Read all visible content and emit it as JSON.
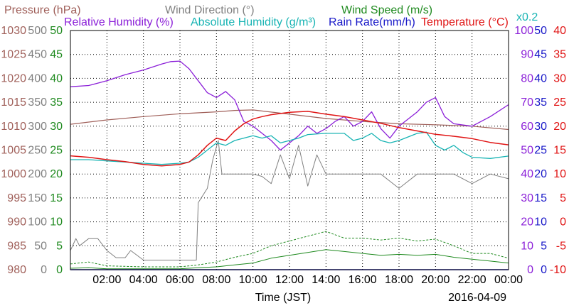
{
  "chart_data": {
    "type": "line",
    "date": "2016-04-09",
    "xlabel": "Time (JST)",
    "x_ticks": [
      "02:00",
      "04:00",
      "06:00",
      "08:00",
      "10:00",
      "12:00",
      "14:00",
      "16:00",
      "18:00",
      "20:00",
      "22:00",
      "00:00"
    ],
    "x_range_hours": [
      0,
      24
    ],
    "grid": true,
    "legend_placement": "top",
    "colors": {
      "pressure": "#a0605a",
      "wind_direction": "#808080",
      "wind_speed": "#1f8a1f",
      "relative_humidity": "#8b1fd8",
      "absolute_humidity": "#18b4b4",
      "rain_rate": "#1818c8",
      "temperature": "#e01414"
    },
    "axes": [
      {
        "key": "pressure",
        "range": [
          980,
          1030
        ],
        "ticks": [
          "980",
          "985",
          "990",
          "995",
          "1000",
          "1005",
          "1010",
          "1015",
          "1020",
          "1025",
          "1030"
        ]
      },
      {
        "key": "wind_direction",
        "range": [
          0,
          500
        ],
        "ticks": [
          "0",
          "50",
          "100",
          "150",
          "200",
          "250",
          "300",
          "350",
          "400",
          "450",
          "500"
        ]
      },
      {
        "key": "wind_speed",
        "range": [
          0,
          50
        ],
        "ticks": [
          "0",
          "5",
          "10",
          "15",
          "20",
          "25",
          "30",
          "35",
          "40",
          "45",
          "50"
        ]
      },
      {
        "key": "relative_humidity",
        "range": [
          0,
          100
        ],
        "ticks": [
          "0",
          "10",
          "20",
          "30",
          "40",
          "50",
          "60",
          "70",
          "80",
          "90",
          "100"
        ]
      },
      {
        "key": "rain_rate",
        "range": [
          0,
          50
        ],
        "ticks": [
          "0",
          "5",
          "10",
          "15",
          "20",
          "25",
          "30",
          "35",
          "40",
          "45",
          "50"
        ]
      },
      {
        "key": "temperature",
        "range": [
          -10,
          40
        ],
        "ticks": [
          "-10",
          "-5",
          "0",
          "5",
          "10",
          "15",
          "20",
          "25",
          "30",
          "35",
          "40"
        ]
      }
    ],
    "titles": {
      "pressure": "Pressure (hPa)",
      "wind_direction": "Wind Direction (°)",
      "wind_speed": "Wind Speed (m/s)",
      "relative_humidity": "Relative Humidity (%)",
      "absolute_humidity": "Absolute Humidity (g/m³)",
      "rain_rate": "Rain Rate(mm/h)",
      "temperature": "Temperature (°C)",
      "abs_humidity_scale": "x0.2"
    },
    "series": [
      {
        "name": "Pressure (hPa)",
        "axis": "pressure",
        "x": [
          0,
          2,
          4,
          6,
          8,
          9,
          10,
          12,
          14,
          16,
          18,
          20,
          22,
          24
        ],
        "y": [
          1010.4,
          1011.3,
          1012.0,
          1012.6,
          1013.0,
          1013.3,
          1013.4,
          1012.5,
          1011.6,
          1011.0,
          1010.5,
          1010.3,
          1010.0,
          1009.3
        ]
      },
      {
        "name": "Wind Direction (°)",
        "axis": "wind_direction",
        "x": [
          0,
          0.3,
          0.5,
          1,
          1.5,
          2,
          2.5,
          3,
          3.3,
          4,
          5,
          6,
          6.9,
          7,
          7.5,
          7.8,
          8.1,
          8.3,
          9,
          10,
          10.5,
          11,
          11.5,
          12,
          12.5,
          13,
          13.5,
          14,
          15,
          16,
          17,
          18,
          19,
          20,
          21,
          22,
          23,
          24
        ],
        "y": [
          40,
          65,
          50,
          65,
          65,
          40,
          25,
          25,
          40,
          20,
          20,
          20,
          20,
          140,
          170,
          230,
          270,
          200,
          200,
          200,
          195,
          180,
          240,
          190,
          260,
          175,
          240,
          200,
          200,
          200,
          200,
          170,
          200,
          200,
          200,
          180,
          200,
          190
        ]
      },
      {
        "name": "Wind Speed (m/s)",
        "axis": "wind_speed",
        "x": [
          0,
          1,
          2,
          4,
          6,
          7,
          8,
          9,
          10,
          11,
          12,
          13,
          14,
          15,
          16,
          17,
          18,
          19,
          20,
          21,
          22,
          23,
          24
        ],
        "y": [
          0.3,
          0.4,
          0.2,
          0.2,
          0.2,
          0.4,
          0.6,
          1.0,
          1.4,
          2.4,
          3.0,
          3.6,
          4.2,
          3.8,
          3.4,
          3.0,
          3.2,
          3.0,
          3.2,
          2.6,
          2.2,
          1.8,
          1.4
        ]
      },
      {
        "name": "Wind Speed gust (m/s)",
        "axis": "wind_speed",
        "x": [
          0,
          1,
          2,
          4,
          6,
          7,
          8,
          9,
          10,
          11,
          12,
          13,
          14,
          15,
          16,
          17,
          18,
          19,
          20,
          21,
          22,
          23,
          24
        ],
        "y": [
          1.2,
          1.6,
          0.8,
          0.6,
          0.6,
          1.0,
          1.6,
          2.6,
          3.4,
          5.0,
          6.0,
          7.0,
          8.0,
          6.6,
          6.6,
          6.2,
          6.6,
          6.0,
          6.4,
          5.0,
          3.4,
          3.4,
          2.4
        ]
      },
      {
        "name": "Relative Humidity (%)",
        "axis": "relative_humidity",
        "x": [
          0,
          1,
          2,
          3,
          4,
          5,
          5.5,
          6,
          6.5,
          7,
          7.5,
          8,
          8.5,
          9,
          9.5,
          10,
          10.5,
          11,
          11.5,
          12,
          12.5,
          13,
          13.5,
          14,
          14.5,
          15,
          15.5,
          16,
          16.5,
          17,
          17.5,
          18,
          18.5,
          19,
          19.5,
          20,
          20.5,
          21,
          22,
          23,
          24
        ],
        "y": [
          76.5,
          77.0,
          79.0,
          81.5,
          83.5,
          86.0,
          87.0,
          87.2,
          84.0,
          79.0,
          74.0,
          72.0,
          74.5,
          71.0,
          62.0,
          60.0,
          57.0,
          54.0,
          50.0,
          53.0,
          56.0,
          60.0,
          57.0,
          59.0,
          62.0,
          64.0,
          60.0,
          62.0,
          66.0,
          59.0,
          55.0,
          60.0,
          63.0,
          66.0,
          70.0,
          72.0,
          64.0,
          61.0,
          60.0,
          64.0,
          69.0
        ]
      },
      {
        "name": "Absolute Humidity (g/m³)",
        "axis": "relative_humidity",
        "x": [
          0,
          1,
          2,
          3,
          4,
          5,
          6,
          6.5,
          7,
          7.5,
          8,
          8.5,
          9,
          9.5,
          10,
          10.5,
          11,
          11.5,
          12,
          12.5,
          13,
          14,
          15,
          15.5,
          16,
          16.5,
          17,
          17.5,
          18,
          19,
          19.5,
          20,
          20.5,
          21,
          21.5,
          22,
          23,
          24
        ],
        "y": [
          46.0,
          46.0,
          45.5,
          45.0,
          44.5,
          44.0,
          44.5,
          45.0,
          47.0,
          50.0,
          53.0,
          52.0,
          54.0,
          55.0,
          56.0,
          55.0,
          56.0,
          53.0,
          54.0,
          55.0,
          56.5,
          57.0,
          57.0,
          54.0,
          55.0,
          57.0,
          54.0,
          53.0,
          54.0,
          57.0,
          57.5,
          52.0,
          50.0,
          52.0,
          49.0,
          47.0,
          46.5,
          47.5
        ]
      },
      {
        "name": "Rain Rate(mm/h)",
        "axis": "rain_rate",
        "x": [
          0,
          24
        ],
        "y": [
          0,
          0
        ]
      },
      {
        "name": "Temperature (°C)",
        "axis": "temperature",
        "x": [
          0,
          1,
          2,
          3,
          4,
          5,
          6,
          6.5,
          7,
          7.5,
          8,
          8.5,
          9,
          9.5,
          10,
          10.5,
          11,
          12,
          13,
          14,
          15,
          16,
          17,
          18,
          19,
          20,
          21,
          22,
          23,
          24
        ],
        "y": [
          13.8,
          13.5,
          13.0,
          12.6,
          12.0,
          11.7,
          12.0,
          12.5,
          14.0,
          16.0,
          17.5,
          17.0,
          19.0,
          20.5,
          21.5,
          22.0,
          22.4,
          22.9,
          23.1,
          22.5,
          22.0,
          21.3,
          20.6,
          19.7,
          19.0,
          18.3,
          17.9,
          17.4,
          16.6,
          16.1
        ]
      }
    ]
  }
}
